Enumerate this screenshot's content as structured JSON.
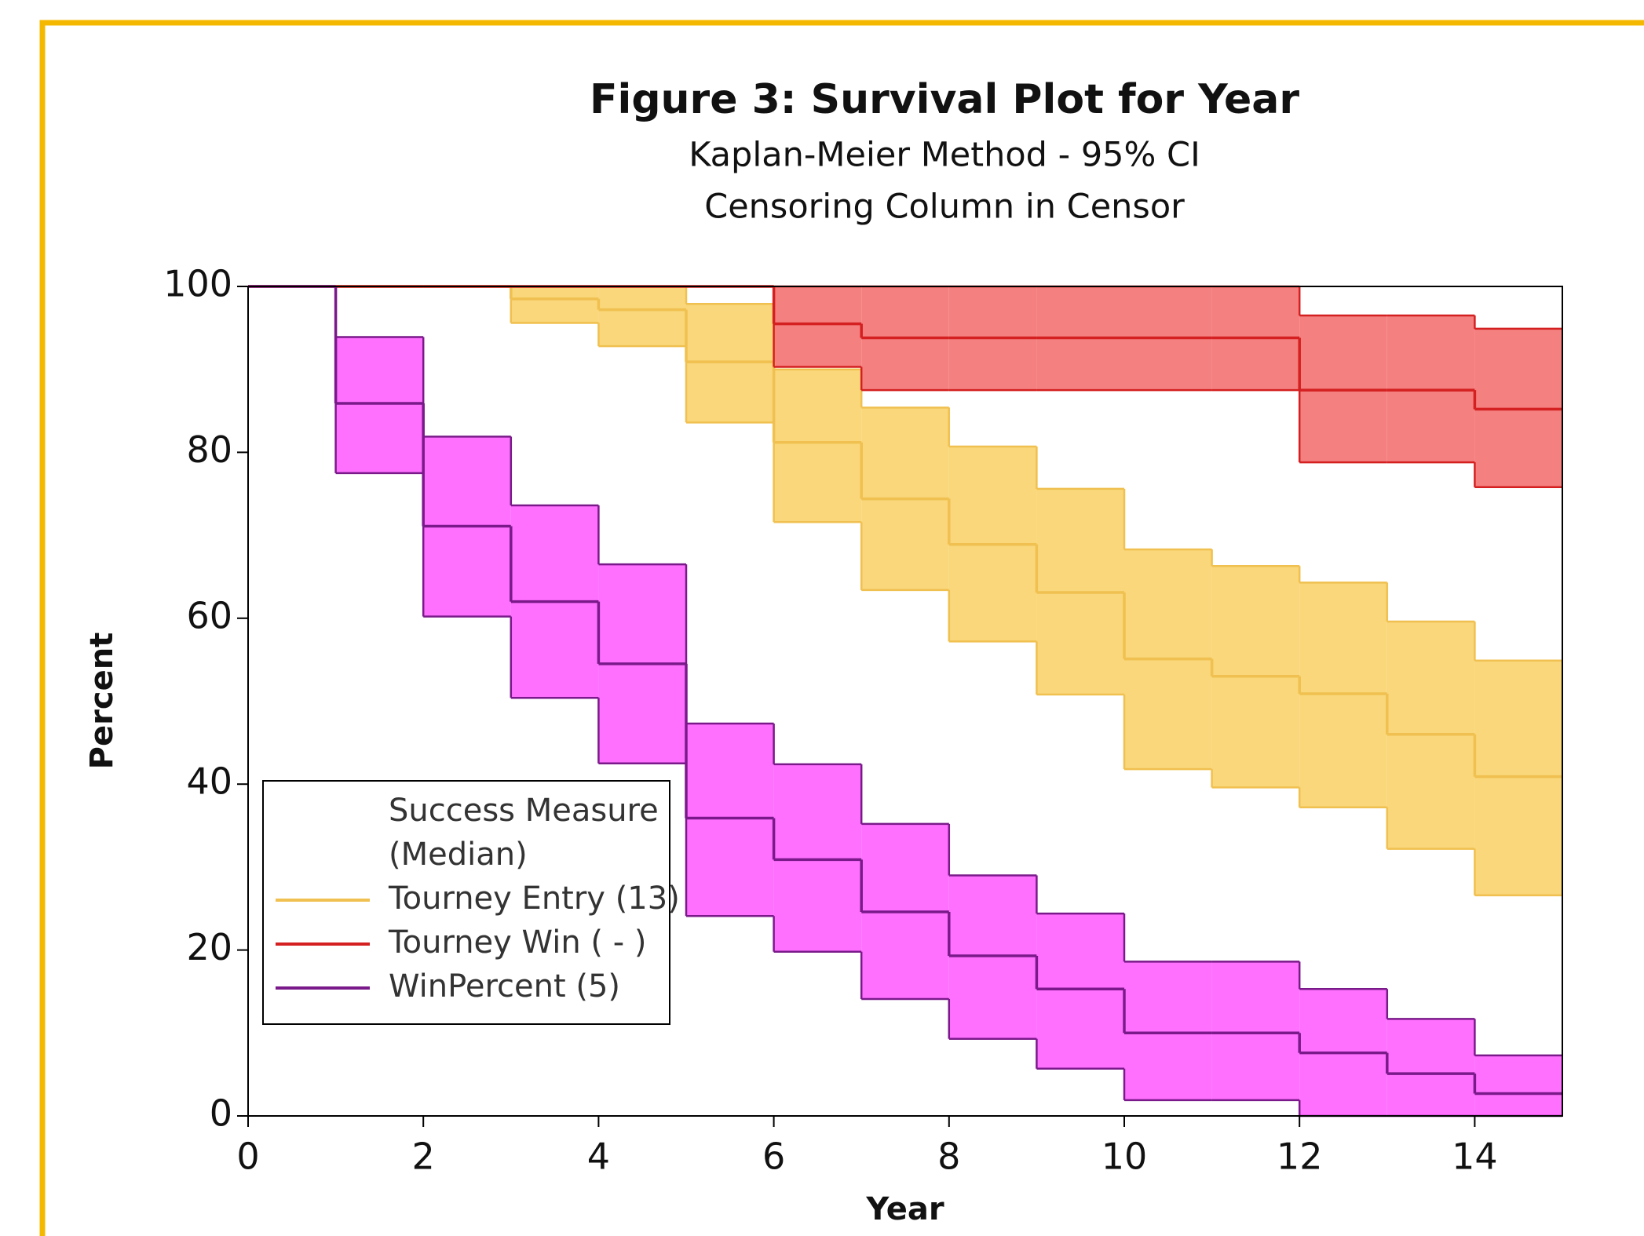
{
  "chart_data": {
    "type": "km-step",
    "title": "Figure 3: Survival Plot for Year",
    "subtitle": [
      "Kaplan-Meier Method - 95% CI",
      "Censoring Column in Censor"
    ],
    "x_label": "Year",
    "y_label": "Percent",
    "legend_title": [
      "Success Measure",
      "(Median)"
    ],
    "legend": "lower left",
    "x": [
      0,
      1,
      2,
      3,
      4,
      5,
      6,
      7,
      8,
      9,
      10,
      11,
      12,
      13,
      14
    ],
    "xlim": [
      0,
      15
    ],
    "xticks": [
      0,
      2,
      4,
      6,
      8,
      10,
      12,
      14
    ],
    "ylim": [
      0,
      100
    ],
    "yticks": [
      0,
      20,
      40,
      60,
      80,
      100
    ],
    "series": [
      {
        "name": "Tourney Entry (13)",
        "color": "#f0c050",
        "band_color": "#f9d77a",
        "values": [
          100,
          100,
          100,
          98.5,
          97.2,
          90.9,
          81.2,
          74.4,
          68.9,
          63.1,
          55.1,
          53.0,
          50.9,
          46.0,
          40.9
        ],
        "lower": [
          100,
          100,
          100,
          95.6,
          92.8,
          83.6,
          71.6,
          63.4,
          57.2,
          50.8,
          41.8,
          39.6,
          37.2,
          32.2,
          26.6
        ],
        "upper": [
          100,
          100,
          100,
          100,
          100,
          97.9,
          90.0,
          85.4,
          80.7,
          75.6,
          68.3,
          66.3,
          64.3,
          59.6,
          54.9
        ]
      },
      {
        "name": "Tourney Win ( - )",
        "color": "#d42020",
        "band_color": "#f58080",
        "values": [
          100,
          100,
          100,
          100,
          100,
          100,
          95.5,
          93.8,
          93.8,
          93.8,
          93.8,
          93.8,
          87.5,
          87.5,
          85.2
        ],
        "lower": [
          100,
          100,
          100,
          100,
          100,
          100,
          90.3,
          87.5,
          87.5,
          87.5,
          87.5,
          87.5,
          78.8,
          78.8,
          75.8
        ],
        "upper": [
          100,
          100,
          100,
          100,
          100,
          100,
          100,
          100,
          100,
          100,
          100,
          100,
          96.5,
          96.5,
          94.9
        ]
      },
      {
        "name": "WinPercent (5)",
        "color": "#7a1a8a",
        "band_color": "#ff70ff",
        "values": [
          100,
          85.9,
          71.1,
          62.0,
          54.5,
          35.9,
          30.9,
          24.6,
          19.3,
          15.3,
          10.0,
          10.0,
          7.6,
          5.1,
          2.7
        ],
        "lower": [
          100,
          77.5,
          60.2,
          50.4,
          42.5,
          24.1,
          19.8,
          14.1,
          9.3,
          5.7,
          1.9,
          1.9,
          0,
          0,
          0
        ],
        "upper": [
          100,
          93.9,
          81.9,
          73.6,
          66.5,
          47.3,
          42.4,
          35.2,
          29.0,
          24.4,
          18.6,
          18.6,
          15.3,
          11.7,
          7.3
        ]
      }
    ]
  }
}
